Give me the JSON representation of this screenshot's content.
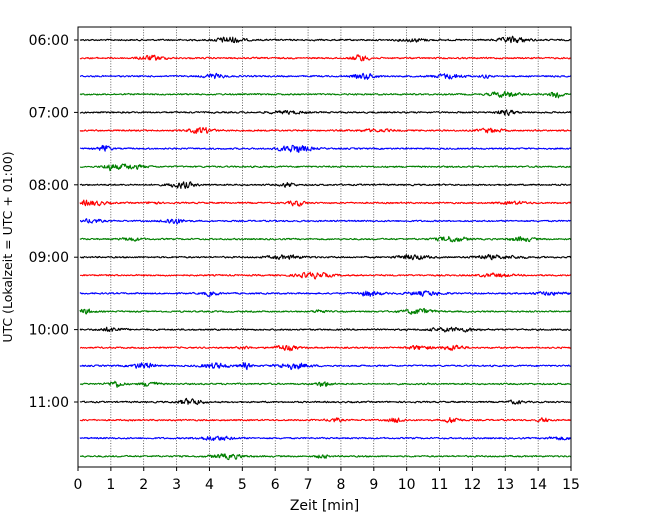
{
  "chart_data": {
    "type": "line",
    "subtype": "helicorder seismogram",
    "title": "",
    "xlabel": "Zeit  [min]",
    "ylabel": "UTC (Lokalzeit = UTC + 01:00)",
    "xlim": [
      0,
      15
    ],
    "x_ticks": [
      "0",
      "1",
      "2",
      "3",
      "4",
      "5",
      "6",
      "7",
      "8",
      "9",
      "10",
      "11",
      "12",
      "13",
      "14",
      "15"
    ],
    "y_tick_labels": [
      "06:00",
      "07:00",
      "08:00",
      "09:00",
      "10:00",
      "11:00"
    ],
    "trace_interval_min": 15,
    "grid": "vertical dotted lines at each minute",
    "trace_colors": [
      "#000000",
      "#ff0000",
      "#0000ff",
      "#008000"
    ],
    "traces": [
      {
        "start": "06:00",
        "color": "#000000"
      },
      {
        "start": "06:15",
        "color": "#ff0000"
      },
      {
        "start": "06:30",
        "color": "#0000ff"
      },
      {
        "start": "06:45",
        "color": "#008000"
      },
      {
        "start": "07:00",
        "color": "#000000"
      },
      {
        "start": "07:15",
        "color": "#ff0000"
      },
      {
        "start": "07:30",
        "color": "#0000ff"
      },
      {
        "start": "07:45",
        "color": "#008000"
      },
      {
        "start": "08:00",
        "color": "#000000"
      },
      {
        "start": "08:15",
        "color": "#ff0000"
      },
      {
        "start": "08:30",
        "color": "#0000ff"
      },
      {
        "start": "08:45",
        "color": "#008000"
      },
      {
        "start": "09:00",
        "color": "#000000"
      },
      {
        "start": "09:15",
        "color": "#ff0000"
      },
      {
        "start": "09:30",
        "color": "#0000ff"
      },
      {
        "start": "09:45",
        "color": "#008000"
      },
      {
        "start": "10:00",
        "color": "#000000"
      },
      {
        "start": "10:15",
        "color": "#ff0000"
      },
      {
        "start": "10:30",
        "color": "#0000ff"
      },
      {
        "start": "10:45",
        "color": "#008000"
      },
      {
        "start": "11:00",
        "color": "#000000"
      },
      {
        "start": "11:15",
        "color": "#ff0000"
      },
      {
        "start": "11:30",
        "color": "#0000ff"
      },
      {
        "start": "11:45",
        "color": "#008000"
      }
    ]
  }
}
